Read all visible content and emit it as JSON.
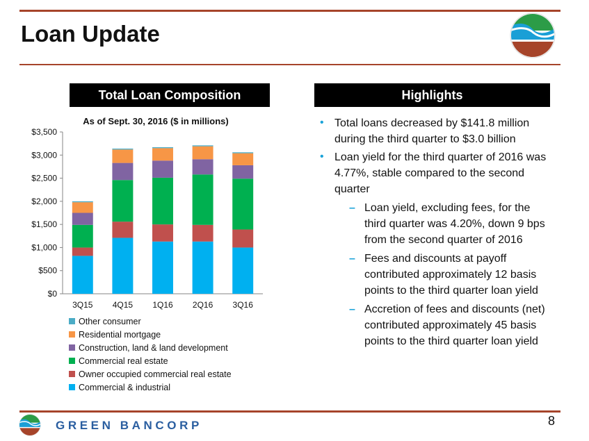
{
  "slide": {
    "title": "Loan Update",
    "page_number": "8",
    "brand": "GREEN BANCORP",
    "accent_color": "#a6442a"
  },
  "left_panel": {
    "header": "Total Loan Composition"
  },
  "right_panel": {
    "header": "Highlights"
  },
  "highlights": [
    {
      "text": "Total loans decreased by $141.8 million during the third quarter to $3.0 billion",
      "subs": []
    },
    {
      "text": "Loan yield for the third quarter of 2016 was 4.77%, stable compared to the second quarter",
      "subs": [
        "Loan yield, excluding fees, for the third quarter was 4.20%, down 9 bps from the second quarter of 2016",
        "Fees and discounts at payoff contributed approximately 12 basis points to the third quarter loan yield",
        "Accretion of fees and discounts (net) contributed approximately 45 basis points to the third quarter loan yield"
      ]
    }
  ],
  "chart_data": {
    "type": "bar",
    "stacked": true,
    "title": "As of Sept. 30, 2016 ($ in millions)",
    "categories": [
      "3Q15",
      "4Q15",
      "1Q16",
      "2Q16",
      "3Q16"
    ],
    "ylim": [
      0,
      3500
    ],
    "yticks": [
      0,
      500,
      1000,
      1500,
      2000,
      2500,
      3000,
      3500
    ],
    "ytick_labels": [
      "$0",
      "$500",
      "$1,000",
      "$1,500",
      "$2,000",
      "$2,500",
      "$3,000",
      "$3,500"
    ],
    "grid": false,
    "legend_position": "bottom",
    "series": [
      {
        "name": "Commercial & industrial",
        "color": "#00b0f0",
        "values": [
          820,
          1210,
          1130,
          1130,
          1000
        ]
      },
      {
        "name": "Owner occupied commercial real estate",
        "color": "#c0504d",
        "values": [
          180,
          350,
          370,
          360,
          390
        ]
      },
      {
        "name": "Commercial real estate",
        "color": "#00b050",
        "values": [
          490,
          900,
          1010,
          1090,
          1100
        ]
      },
      {
        "name": "Construction, land & land development",
        "color": "#8064a2",
        "values": [
          260,
          370,
          370,
          330,
          290
        ]
      },
      {
        "name": "Residential mortgage",
        "color": "#f79646",
        "values": [
          230,
          290,
          270,
          280,
          260
        ]
      },
      {
        "name": "Other consumer",
        "color": "#4bacc6",
        "values": [
          20,
          20,
          20,
          20,
          20
        ]
      }
    ]
  }
}
